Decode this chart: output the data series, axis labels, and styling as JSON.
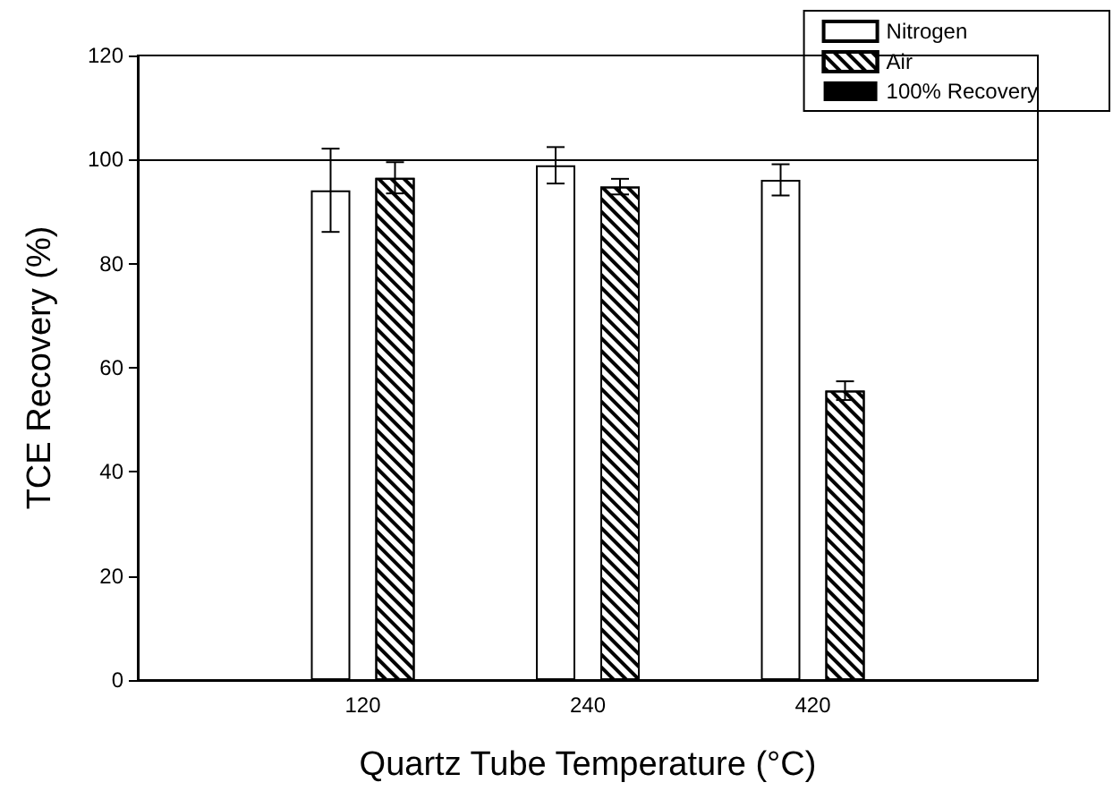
{
  "chart_data": {
    "type": "bar",
    "xlabel": "Quartz Tube Temperature (°C)",
    "ylabel": "TCE Recovery (%)",
    "categories": [
      null,
      "120",
      "240",
      "420",
      null
    ],
    "series": [
      {
        "name": "Nitrogen",
        "color": "#ffffff",
        "values": [
          null,
          94.1,
          98.9,
          96.1,
          null
        ],
        "errors": [
          null,
          8,
          3.5,
          3,
          null
        ]
      },
      {
        "name": "Air",
        "color": "#ffffff",
        "values": [
          null,
          96.5,
          94.8,
          55.6,
          null
        ],
        "errors": [
          null,
          3,
          1.5,
          1.8,
          null
        ]
      }
    ],
    "ylim": [
      0,
      120
    ],
    "yticks": [
      0,
      20,
      40,
      60,
      80,
      100,
      120
    ],
    "ref_lines": [
      {
        "axis": "y",
        "value": 100,
        "label": "100% Recovery",
        "color": "#000000"
      }
    ],
    "grid": false,
    "legend": "top right"
  }
}
